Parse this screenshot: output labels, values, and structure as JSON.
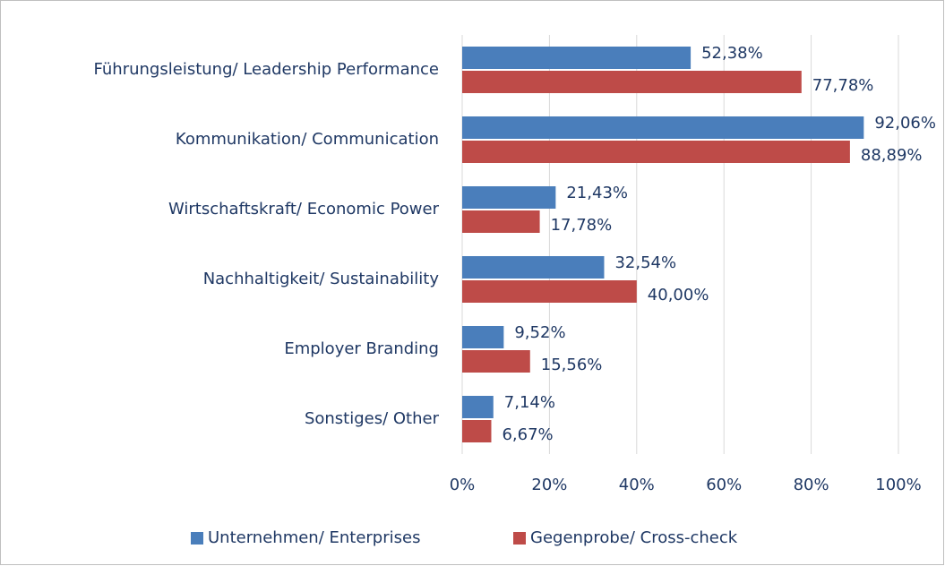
{
  "chart_data": {
    "type": "bar",
    "orientation": "horizontal",
    "categories": [
      "Führungsleistung/ Leadership Performance",
      "Kommunikation/ Communication",
      "Wirtschaftskraft/ Economic Power",
      "Nachhaltigkeit/ Sustainability",
      "Employer Branding",
      "Sonstiges/ Other"
    ],
    "series": [
      {
        "name": "Unternehmen/ Enterprises",
        "color": "#4a7ebb",
        "values": [
          52.38,
          92.06,
          21.43,
          32.54,
          9.52,
          7.14
        ],
        "value_labels": [
          "52,38%",
          "92,06%",
          "21,43%",
          "32,54%",
          "9,52%",
          "7,14%"
        ]
      },
      {
        "name": "Gegenprobe/ Cross-check",
        "color": "#be4b48",
        "values": [
          77.78,
          88.89,
          17.78,
          40.0,
          15.56,
          6.67
        ],
        "value_labels": [
          "77,78%",
          "88,89%",
          "17,78%",
          "40,00%",
          "15,56%",
          "6,67%"
        ]
      }
    ],
    "xlim": [
      0,
      100
    ],
    "xticks": [
      {
        "value": 0,
        "label": "0%"
      },
      {
        "value": 20,
        "label": "20%"
      },
      {
        "value": 40,
        "label": "40%"
      },
      {
        "value": 60,
        "label": "60%"
      },
      {
        "value": 80,
        "label": "80%"
      },
      {
        "value": 100,
        "label": "100%"
      }
    ],
    "grid": true,
    "legend": "bottom"
  }
}
